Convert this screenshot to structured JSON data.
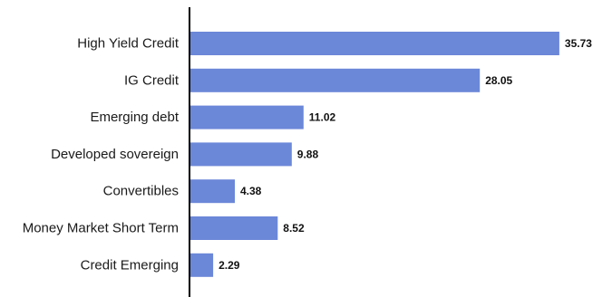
{
  "chart_data": {
    "type": "bar",
    "orientation": "horizontal",
    "categories": [
      "High Yield Credit",
      "IG Credit",
      "Emerging debt",
      "Developed sovereign",
      "Convertibles",
      "Money Market Short Term",
      "Credit Emerging"
    ],
    "values": [
      35.73,
      28.05,
      11.02,
      9.88,
      4.38,
      8.52,
      2.29
    ],
    "value_labels": [
      "35.73",
      "28.05",
      "11.02",
      "9.88",
      "4.38",
      "8.52",
      "2.29"
    ],
    "xlim": [
      0,
      36
    ],
    "grid": false,
    "legend": "none",
    "bar_color": "#6b87d8",
    "axis_color": "#000000"
  }
}
